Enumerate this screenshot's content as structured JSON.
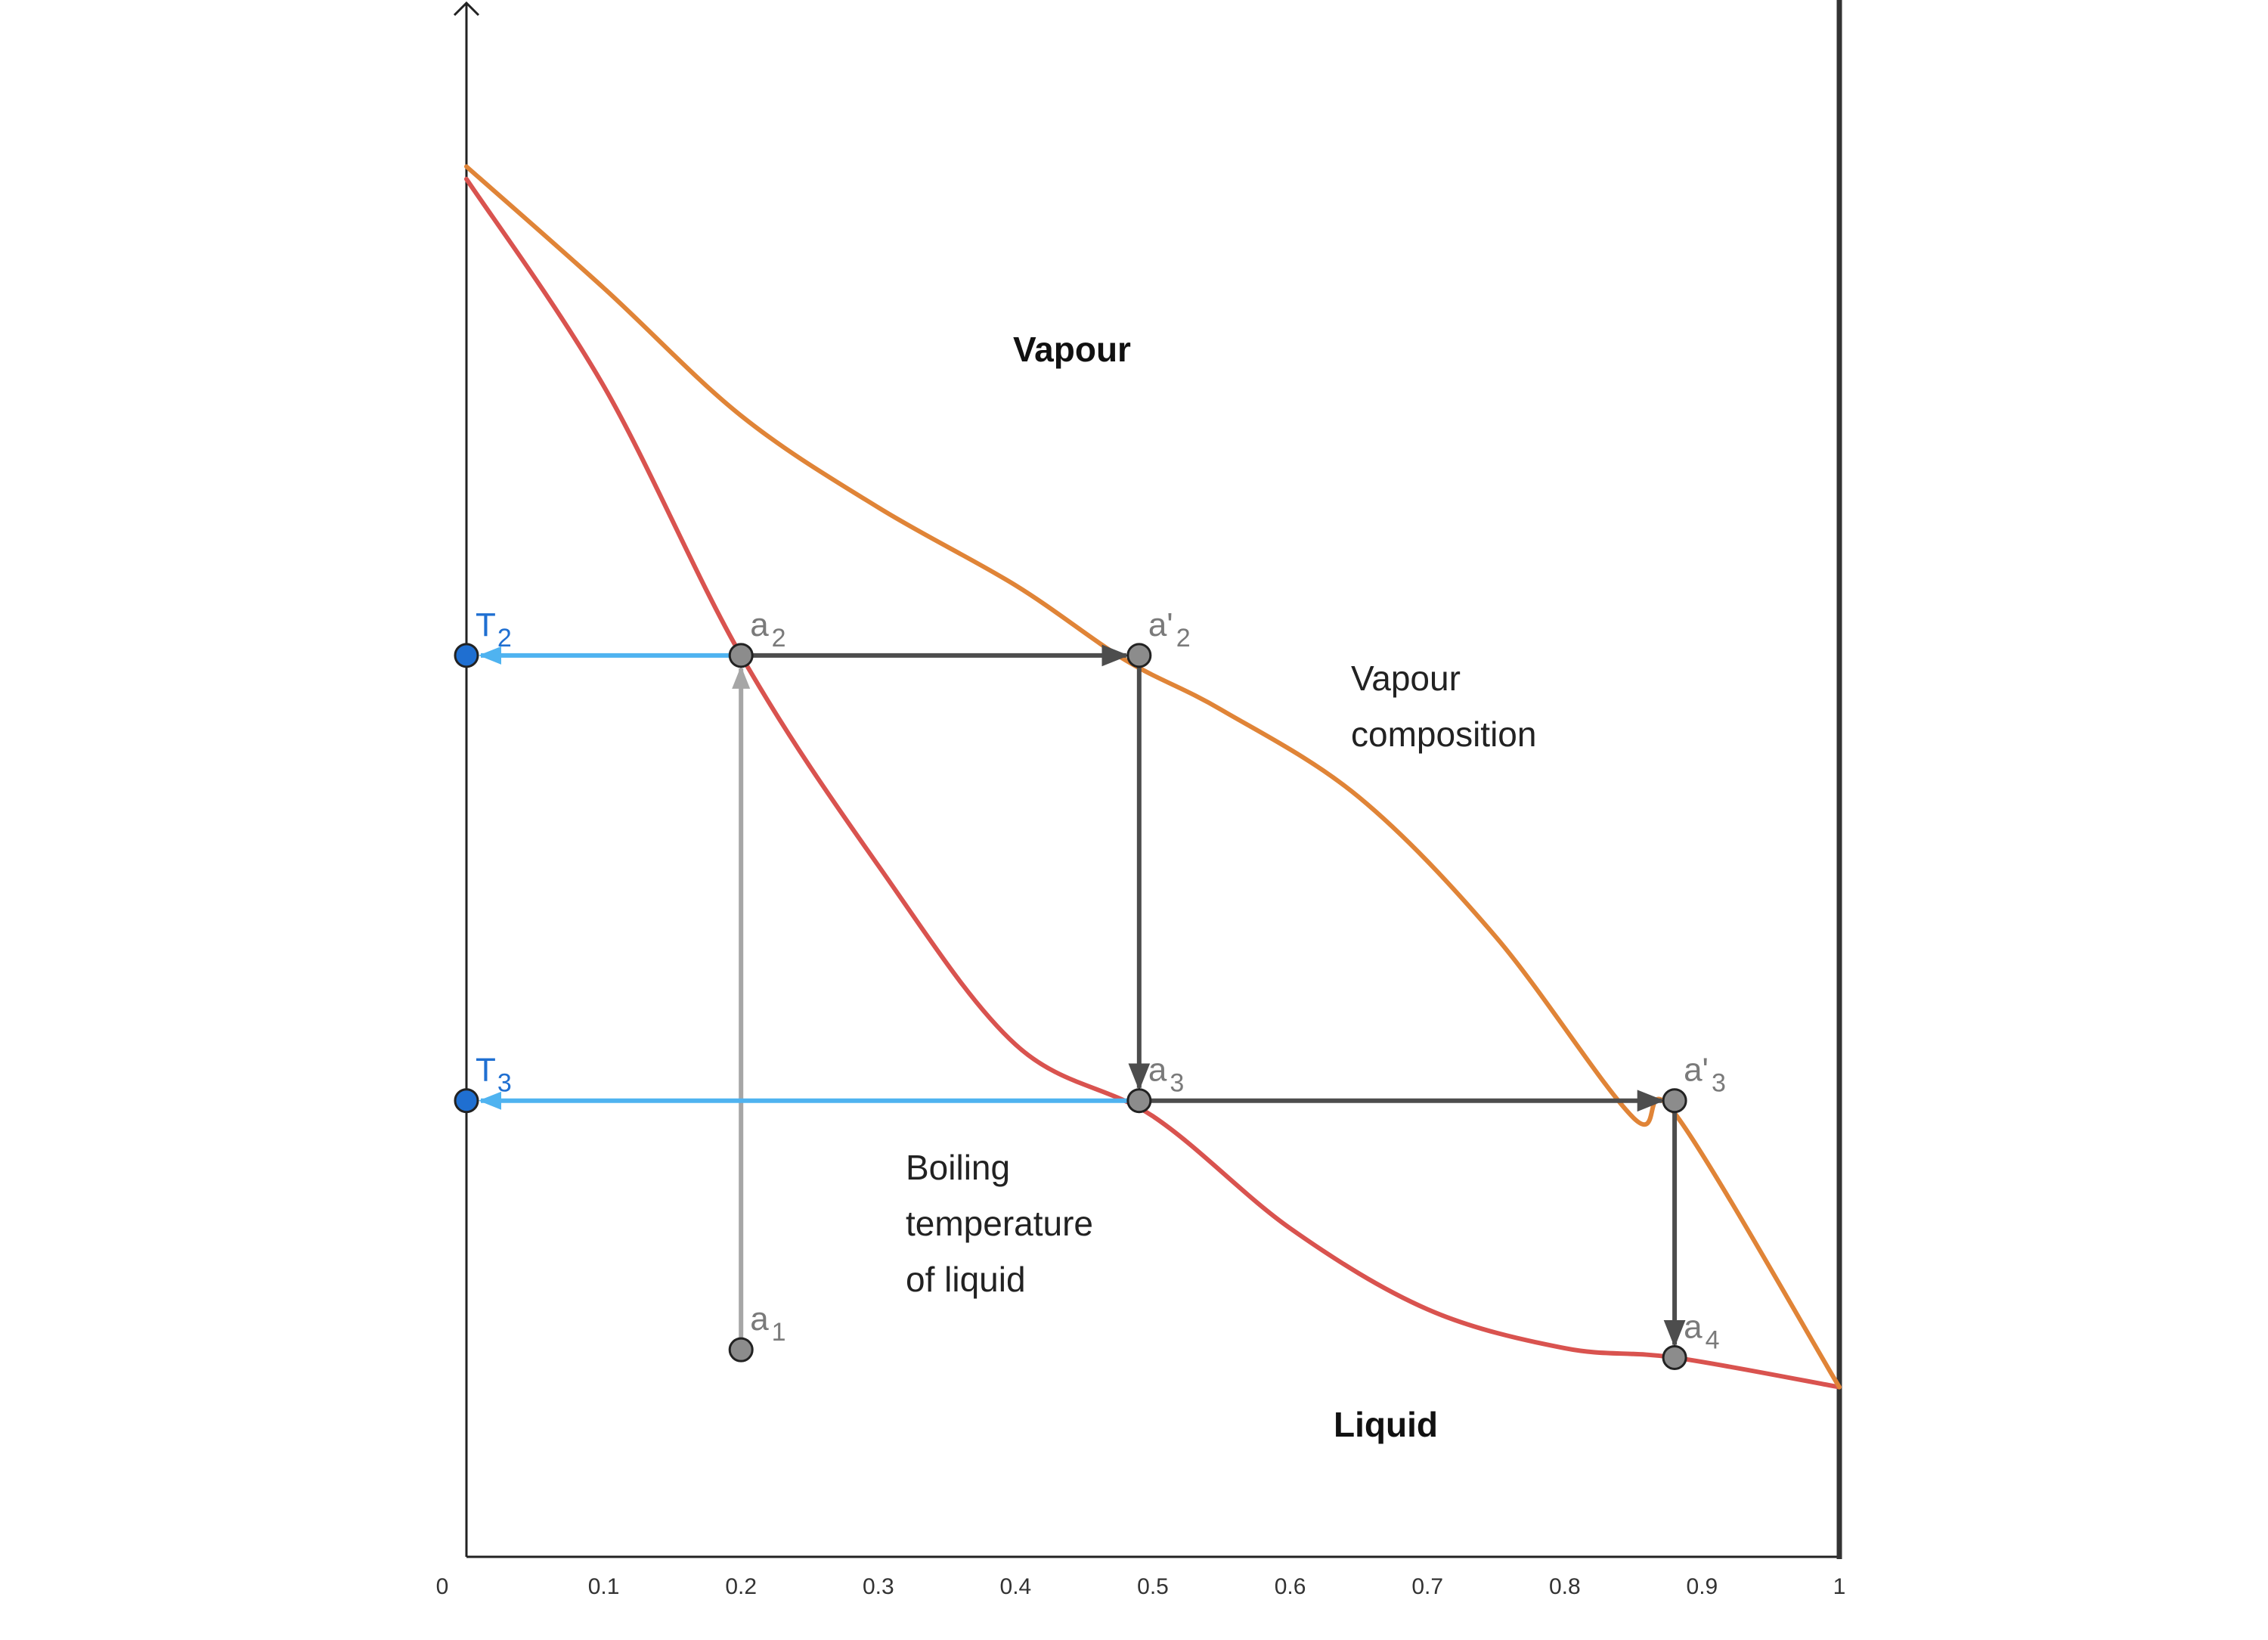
{
  "chart_data": {
    "type": "line",
    "title": "",
    "xlabel": "",
    "ylabel": "",
    "xlim": [
      0,
      1
    ],
    "ylim": [
      0,
      1
    ],
    "ticks": [
      "0",
      "0.1",
      "0.2",
      "0.3",
      "0.4",
      "0.5",
      "0.6",
      "0.7",
      "0.8",
      "0.9",
      "1"
    ],
    "grid": false,
    "series": [
      {
        "key": "liquid",
        "color": "#d9534f",
        "x": [
          0,
          0.1,
          0.2,
          0.3,
          0.4,
          0.5,
          0.6,
          0.7,
          0.8,
          0.88,
          1.0
        ],
        "y": [
          0.885,
          0.752,
          0.579,
          0.444,
          0.329,
          0.283,
          0.211,
          0.159,
          0.134,
          0.128,
          0.109
        ]
      },
      {
        "key": "vapour",
        "color": "#e08437",
        "x": [
          0,
          0.1,
          0.2,
          0.3,
          0.4,
          0.48,
          0.55,
          0.65,
          0.75,
          0.85,
          0.88,
          1.0
        ],
        "y": [
          0.893,
          0.815,
          0.733,
          0.674,
          0.624,
          0.576,
          0.544,
          0.488,
          0.398,
          0.282,
          0.285,
          0.109
        ]
      }
    ],
    "points": [
      {
        "key": "a1",
        "base": "a",
        "sub": "1",
        "x": 0.2,
        "y": 0.133
      },
      {
        "key": "a2",
        "base": "a",
        "sub": "2",
        "x": 0.2,
        "y": 0.579
      },
      {
        "key": "a2p",
        "base": "a'",
        "sub": "2",
        "x": 0.49,
        "y": 0.579
      },
      {
        "key": "a3",
        "base": "a",
        "sub": "3",
        "x": 0.49,
        "y": 0.293
      },
      {
        "key": "a3p",
        "base": "a'",
        "sub": "3",
        "x": 0.88,
        "y": 0.293
      },
      {
        "key": "a4",
        "base": "a",
        "sub": "4",
        "x": 0.88,
        "y": 0.128
      }
    ],
    "temperature_marks": [
      {
        "key": "T2",
        "base": "T",
        "sub": "2",
        "y": 0.579
      },
      {
        "key": "T3",
        "base": "T",
        "sub": "3",
        "y": 0.293
      }
    ],
    "region_labels": {
      "vapour": "Vapour",
      "liquid": "Liquid"
    },
    "annotations": {
      "vapour_composition": [
        "Vapour",
        "composition"
      ],
      "boiling_temperature": [
        "Boiling",
        "temperature",
        "of liquid"
      ]
    },
    "colors": {
      "liquid_curve": "#d9534f",
      "vapour_curve": "#e08437",
      "temperature_arrow": "#4fb3f0",
      "temperature_point": "#1f6fd1",
      "path_arrow": "#4d4d4d",
      "heating_arrow": "#a6a6a6",
      "point_fill": "#8c8c8c"
    }
  }
}
